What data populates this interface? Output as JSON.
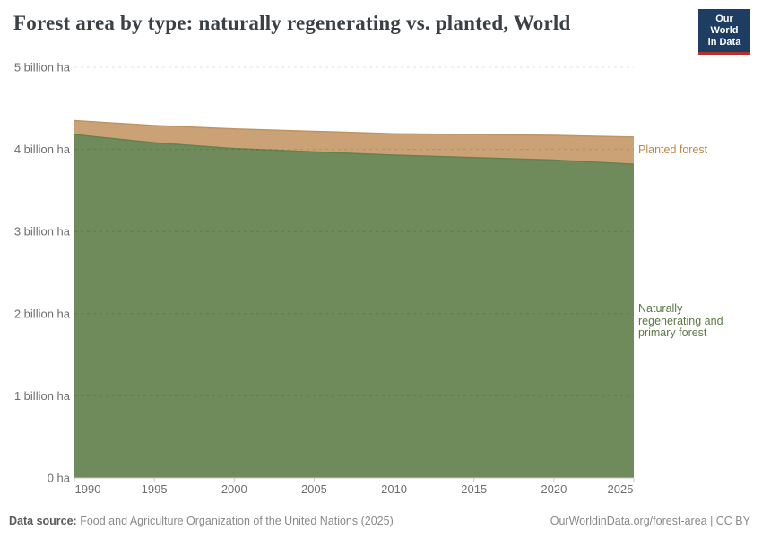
{
  "header": {
    "title": "Forest area by type: naturally regenerating vs. planted, World",
    "logo": {
      "line1": "Our World",
      "line2": "in Data",
      "bg_color": "#1d3d63",
      "bar_color": "#b5322a"
    }
  },
  "chart_data": {
    "type": "area",
    "stacked": true,
    "title": "Forest area by type: naturally regenerating vs. planted, World",
    "unit": "billion ha",
    "x": [
      1990,
      1995,
      2000,
      2005,
      2010,
      2015,
      2020,
      2025
    ],
    "x_ticks": [
      1990,
      1995,
      2000,
      2005,
      2010,
      2015,
      2020,
      2025
    ],
    "xlim": [
      1990,
      2025
    ],
    "ylim": [
      0,
      5
    ],
    "grid": "horizontal-dashed",
    "legend_position": "right-edge-labels",
    "y_ticks": [
      {
        "value": 0,
        "label": "0 ha"
      },
      {
        "value": 1,
        "label": "1 billion ha"
      },
      {
        "value": 2,
        "label": "2 billion ha"
      },
      {
        "value": 3,
        "label": "3 billion ha"
      },
      {
        "value": 4,
        "label": "4 billion ha"
      },
      {
        "value": 5,
        "label": "5 billion ha"
      }
    ],
    "series": [
      {
        "name": "Naturally regenerating and primary forest",
        "label_lines": [
          "Naturally",
          "regenerating and",
          "primary forest"
        ],
        "color": "#6f8b5b",
        "line_color": "#64814e",
        "label_color": "#5b7a43",
        "values_billion_ha": [
          4.18,
          4.08,
          4.01,
          3.97,
          3.93,
          3.9,
          3.87,
          3.82
        ]
      },
      {
        "name": "Planted forest",
        "color": "#cba176",
        "line_color": "#c09362",
        "label_color": "#b9894e",
        "values_billion_ha": [
          0.17,
          0.21,
          0.24,
          0.25,
          0.26,
          0.28,
          0.3,
          0.33
        ]
      }
    ]
  },
  "footer": {
    "source_label": "Data source:",
    "source_text": "Food and Agriculture Organization of the United Nations (2025)",
    "link_text": "OurWorldinData.org/forest-area | CC BY"
  }
}
